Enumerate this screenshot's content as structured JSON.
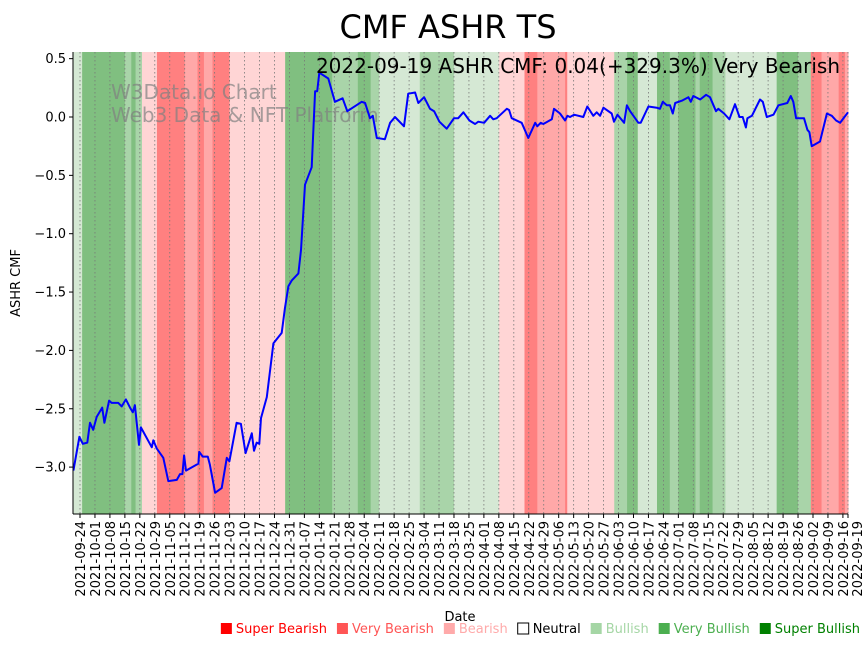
{
  "chart_data": {
    "type": "line",
    "title": "CMF ASHR TS",
    "subtitle": "2022-09-19 ASHR CMF: 0.04(+329.3%) Very Bearish",
    "watermark": [
      "W3Data.io Chart",
      "Web3 Data & NFT Platform"
    ],
    "xlabel": "Date",
    "ylabel": "ASHR CMF",
    "x_origin_date": "2021-09-24",
    "x_unit": "days since 2021-09-24",
    "xlim_dates": [
      "2021-09-21",
      "2022-09-19"
    ],
    "ylim": [
      -3.4,
      0.57
    ],
    "yticks": [
      0.5,
      0.0,
      -0.5,
      -1.0,
      -1.5,
      -2.0,
      -2.5,
      -3.0
    ],
    "ytick_labels": [
      "0.5",
      "0.0",
      "−0.5",
      "−1.0",
      "−1.5",
      "−2.0",
      "−2.5",
      "−3.0"
    ],
    "xtick_labels": [
      "2021-09-24",
      "2021-10-01",
      "2021-10-08",
      "2021-10-15",
      "2021-10-22",
      "2021-10-29",
      "2021-11-05",
      "2021-11-12",
      "2021-11-19",
      "2021-11-26",
      "2021-12-03",
      "2021-12-10",
      "2021-12-17",
      "2021-12-24",
      "2021-12-31",
      "2022-01-07",
      "2022-01-14",
      "2022-01-21",
      "2022-01-28",
      "2022-02-04",
      "2022-02-11",
      "2022-02-18",
      "2022-02-25",
      "2022-03-04",
      "2022-03-11",
      "2022-03-18",
      "2022-03-25",
      "2022-04-01",
      "2022-04-08",
      "2022-04-15",
      "2022-04-22",
      "2022-04-29",
      "2022-05-06",
      "2022-05-13",
      "2022-05-20",
      "2022-05-27",
      "2022-06-03",
      "2022-06-10",
      "2022-06-17",
      "2022-06-24",
      "2022-07-01",
      "2022-07-08",
      "2022-07-15",
      "2022-07-22",
      "2022-07-29",
      "2022-08-05",
      "2022-08-12",
      "2022-08-19",
      "2022-08-26",
      "2022-09-02",
      "2022-09-09",
      "2022-09-16",
      "2022-09-19"
    ],
    "grid": "vertical dotted",
    "series": [
      {
        "name": "ASHR CMF",
        "color": "#0000ff",
        "points": [
          [
            -3.1,
            -3.03
          ],
          [
            -0.3,
            -2.74
          ],
          [
            1.3,
            -2.8
          ],
          [
            3.4,
            -2.79
          ],
          [
            4.7,
            -2.62
          ],
          [
            6.2,
            -2.68
          ],
          [
            7.8,
            -2.57
          ],
          [
            10.4,
            -2.49
          ],
          [
            11.4,
            -2.62
          ],
          [
            13.6,
            -2.43
          ],
          [
            14.8,
            -2.45
          ],
          [
            17.9,
            -2.45
          ],
          [
            19.5,
            -2.48
          ],
          [
            21.5,
            -2.42
          ],
          [
            23.4,
            -2.49
          ],
          [
            24.7,
            -2.53
          ],
          [
            25.7,
            -2.47
          ],
          [
            27.6,
            -2.81
          ],
          [
            28.5,
            -2.66
          ],
          [
            33.6,
            -2.83
          ],
          [
            34.3,
            -2.77
          ],
          [
            35.9,
            -2.84
          ],
          [
            39,
            -2.92
          ],
          [
            41.3,
            -3.12
          ],
          [
            45.3,
            -3.11
          ],
          [
            46.8,
            -3.06
          ],
          [
            47.9,
            -3.06
          ],
          [
            48.7,
            -2.9
          ],
          [
            49.6,
            -3.03
          ],
          [
            55.4,
            -2.97
          ],
          [
            55.8,
            -2.87
          ],
          [
            57.4,
            -2.91
          ],
          [
            59.8,
            -2.91
          ],
          [
            60.8,
            -2.98
          ],
          [
            63.2,
            -3.22
          ],
          [
            66.3,
            -3.18
          ],
          [
            68.7,
            -2.92
          ],
          [
            69.9,
            -2.95
          ],
          [
            73.3,
            -2.62
          ],
          [
            75.3,
            -2.63
          ],
          [
            77.5,
            -2.88
          ],
          [
            80.4,
            -2.71
          ],
          [
            81.4,
            -2.86
          ],
          [
            82.7,
            -2.79
          ],
          [
            83.9,
            -2.8
          ],
          [
            84.7,
            -2.58
          ],
          [
            87.4,
            -2.4
          ],
          [
            90.5,
            -1.94
          ],
          [
            94.4,
            -1.85
          ],
          [
            95.9,
            -1.64
          ],
          [
            97.5,
            -1.45
          ],
          [
            99.1,
            -1.4
          ],
          [
            102.2,
            -1.34
          ],
          [
            103.4,
            -1.14
          ],
          [
            105.3,
            -0.58
          ],
          [
            108.4,
            -0.43
          ],
          [
            110,
            0.22
          ],
          [
            111,
            0.22
          ],
          [
            112,
            0.38
          ],
          [
            116.2,
            0.33
          ],
          [
            119.3,
            0.13
          ],
          [
            122.9,
            0.16
          ],
          [
            125.1,
            0.05
          ],
          [
            131.8,
            0.13
          ],
          [
            133.4,
            0.12
          ],
          [
            135.7,
            -0.01
          ],
          [
            137,
            0.01
          ],
          [
            138.9,
            -0.18
          ],
          [
            142.7,
            -0.19
          ],
          [
            145.1,
            -0.05
          ],
          [
            147.4,
            0.0
          ],
          [
            151.6,
            -0.08
          ],
          [
            153.6,
            0.2
          ],
          [
            156.8,
            0.21
          ],
          [
            158.3,
            0.12
          ],
          [
            161,
            0.17
          ],
          [
            163.8,
            0.07
          ],
          [
            165.7,
            0.05
          ],
          [
            168.2,
            -0.04
          ],
          [
            171.6,
            -0.1
          ],
          [
            175,
            -0.01
          ],
          [
            177,
            -0.01
          ],
          [
            179.4,
            0.04
          ],
          [
            182.2,
            -0.03
          ],
          [
            184.9,
            -0.06
          ],
          [
            186.4,
            -0.04
          ],
          [
            189.1,
            -0.05
          ],
          [
            191.9,
            0.01
          ],
          [
            193.4,
            -0.02
          ],
          [
            195,
            -0.01
          ],
          [
            199.7,
            0.07
          ],
          [
            200.8,
            0.06
          ],
          [
            202,
            -0.01
          ],
          [
            206.7,
            -0.05
          ],
          [
            209.8,
            -0.18
          ],
          [
            213,
            -0.05
          ],
          [
            214,
            -0.08
          ],
          [
            215.6,
            -0.05
          ],
          [
            216.8,
            -0.06
          ],
          [
            220.8,
            -0.02
          ],
          [
            221.8,
            0.07
          ],
          [
            224.6,
            0.03
          ],
          [
            227,
            -0.03
          ],
          [
            228.1,
            0.01
          ],
          [
            229.3,
            0.0
          ],
          [
            231.2,
            0.02
          ],
          [
            235.5,
            0.0
          ],
          [
            237.4,
            0.09
          ],
          [
            240.2,
            0.01
          ],
          [
            241.8,
            0.04
          ],
          [
            243.4,
            0.01
          ],
          [
            244.9,
            0.08
          ],
          [
            248.8,
            0.03
          ],
          [
            249.9,
            -0.04
          ],
          [
            251.5,
            0.02
          ],
          [
            254.6,
            -0.05
          ],
          [
            255.9,
            0.1
          ],
          [
            257.4,
            0.05
          ],
          [
            261.3,
            -0.05
          ],
          [
            262.4,
            -0.05
          ],
          [
            266,
            0.09
          ],
          [
            269.9,
            0.08
          ],
          [
            271.4,
            0.07
          ],
          [
            272.7,
            0.13
          ],
          [
            274.6,
            0.1
          ],
          [
            276.1,
            0.1
          ],
          [
            277.4,
            0.03
          ],
          [
            278.5,
            0.12
          ],
          [
            281.6,
            0.14
          ],
          [
            284.7,
            0.17
          ],
          [
            285.8,
            0.13
          ],
          [
            287,
            0.18
          ],
          [
            290.2,
            0.15
          ],
          [
            293,
            0.19
          ],
          [
            294.8,
            0.17
          ],
          [
            297.6,
            0.05
          ],
          [
            298.7,
            0.07
          ],
          [
            301.4,
            0.03
          ],
          [
            303.9,
            -0.02
          ],
          [
            306.5,
            0.11
          ],
          [
            308.6,
            0.0
          ],
          [
            310.1,
            0.0
          ],
          [
            311.6,
            -0.09
          ],
          [
            312.3,
            -0.01
          ],
          [
            314.4,
            0.01
          ],
          [
            318.2,
            0.15
          ],
          [
            319.5,
            0.13
          ],
          [
            321.4,
            0.0
          ],
          [
            324.5,
            0.02
          ],
          [
            326.8,
            0.1
          ],
          [
            331,
            0.12
          ],
          [
            332.6,
            0.18
          ],
          [
            333.8,
            0.13
          ],
          [
            335.1,
            -0.01
          ],
          [
            338.8,
            -0.01
          ],
          [
            340.4,
            -0.11
          ],
          [
            341.3,
            -0.13
          ],
          [
            342.4,
            -0.25
          ],
          [
            346.3,
            -0.21
          ],
          [
            349.5,
            0.03
          ],
          [
            351.8,
            0.01
          ],
          [
            353.8,
            -0.03
          ],
          [
            355.7,
            -0.05
          ],
          [
            356.5,
            -0.03
          ],
          [
            359.4,
            0.04
          ]
        ]
      }
    ],
    "bands": [
      [
        "2021-09-21",
        "2021-09-25",
        "bullish"
      ],
      [
        "2021-09-25",
        "2021-10-15",
        "very_bullish"
      ],
      [
        "2021-10-15",
        "2021-10-18",
        "bullish_mid"
      ],
      [
        "2021-10-18",
        "2021-10-20",
        "very_bullish"
      ],
      [
        "2021-10-20",
        "2021-10-23",
        "bullish_mid"
      ],
      [
        "2021-10-23",
        "2021-10-30",
        "bearish"
      ],
      [
        "2021-10-30",
        "2021-11-12",
        "super_bearish"
      ],
      [
        "2021-11-12",
        "2021-11-18",
        "very_bearish"
      ],
      [
        "2021-11-18",
        "2021-11-21",
        "super_bearish"
      ],
      [
        "2021-11-21",
        "2021-11-25",
        "very_bearish"
      ],
      [
        "2021-11-25",
        "2021-12-03",
        "super_bearish"
      ],
      [
        "2021-12-03",
        "2021-12-29",
        "bearish"
      ],
      [
        "2021-12-29",
        "2022-01-20",
        "very_bullish"
      ],
      [
        "2022-01-20",
        "2022-02-01",
        "bullish_mid"
      ],
      [
        "2022-02-01",
        "2022-02-07",
        "very_bullish"
      ],
      [
        "2022-02-07",
        "2022-02-11",
        "bullish_mid"
      ],
      [
        "2022-02-11",
        "2022-03-02",
        "bullish"
      ],
      [
        "2022-03-02",
        "2022-03-18",
        "bullish_mid"
      ],
      [
        "2022-03-18",
        "2022-04-08",
        "bullish"
      ],
      [
        "2022-04-08",
        "2022-04-20",
        "bearish"
      ],
      [
        "2022-04-20",
        "2022-04-26",
        "super_bearish"
      ],
      [
        "2022-04-26",
        "2022-05-09",
        "very_bearish"
      ],
      [
        "2022-05-09",
        "2022-05-10",
        "super_bearish"
      ],
      [
        "2022-05-10",
        "2022-06-01",
        "bearish"
      ],
      [
        "2022-06-01",
        "2022-06-07",
        "bullish_mid"
      ],
      [
        "2022-06-07",
        "2022-06-12",
        "very_bullish"
      ],
      [
        "2022-06-12",
        "2022-06-21",
        "bullish"
      ],
      [
        "2022-06-21",
        "2022-06-27",
        "very_bullish"
      ],
      [
        "2022-06-27",
        "2022-07-01",
        "bullish_mid"
      ],
      [
        "2022-07-01",
        "2022-07-09",
        "very_bullish"
      ],
      [
        "2022-07-09",
        "2022-07-11",
        "bullish_mid"
      ],
      [
        "2022-07-11",
        "2022-07-17",
        "very_bullish"
      ],
      [
        "2022-07-17",
        "2022-07-23",
        "bullish_mid"
      ],
      [
        "2022-07-23",
        "2022-08-16",
        "bullish"
      ],
      [
        "2022-08-16",
        "2022-08-26",
        "very_bullish"
      ],
      [
        "2022-08-26",
        "2022-09-01",
        "bullish_mid"
      ],
      [
        "2022-09-01",
        "2022-09-06",
        "super_bearish"
      ],
      [
        "2022-09-06",
        "2022-09-14",
        "very_bearish"
      ],
      [
        "2022-09-14",
        "2022-09-17",
        "super_bearish"
      ],
      [
        "2022-09-17",
        "2022-09-19",
        "very_bearish"
      ]
    ],
    "band_colors": {
      "bullish": "#d5e8d4",
      "bullish_mid": "#a9d4a9",
      "very_bullish": "#80bf80",
      "bearish": "#ffd5d5",
      "very_bearish": "#ffa8a8",
      "super_bearish": "#ff8080"
    },
    "legend": {
      "placement": "bottom-right",
      "items": [
        {
          "label": "Super Bearish",
          "color": "#ff0000"
        },
        {
          "label": "Very Bearish",
          "color": "#ff5555"
        },
        {
          "label": "Bearish",
          "color": "#ffaaaa"
        },
        {
          "label": "Neutral",
          "color": "#000000"
        },
        {
          "label": "Bullish",
          "color": "#a5d6a5"
        },
        {
          "label": "Very Bullish",
          "color": "#4caf50"
        },
        {
          "label": "Super Bullish",
          "color": "#008000"
        }
      ]
    }
  }
}
